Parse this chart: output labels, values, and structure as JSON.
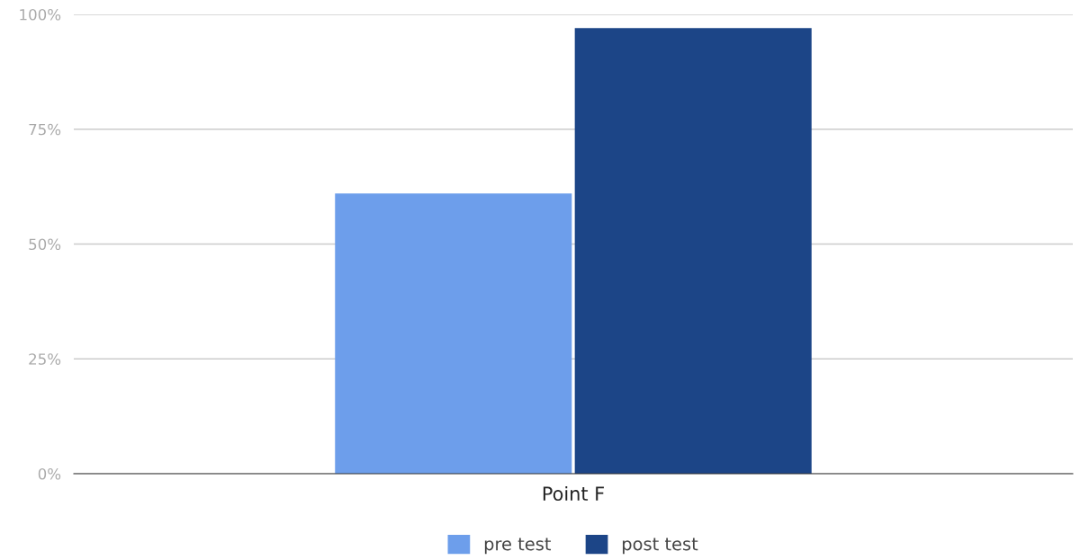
{
  "chart_data": {
    "type": "bar",
    "categories": [
      "Point F"
    ],
    "series": [
      {
        "name": "pre test",
        "color": "#6d9eeb",
        "values": [
          61
        ]
      },
      {
        "name": "post test",
        "color": "#1c4587",
        "values": [
          97
        ]
      }
    ],
    "ylim": [
      0,
      100
    ],
    "yticks": [
      {
        "value": 0,
        "label": "0%"
      },
      {
        "value": 25,
        "label": "25%"
      },
      {
        "value": 50,
        "label": "50%"
      },
      {
        "value": 75,
        "label": "75%"
      },
      {
        "value": 100,
        "label": "100%"
      }
    ],
    "grid": "y",
    "legend": "bottom"
  }
}
